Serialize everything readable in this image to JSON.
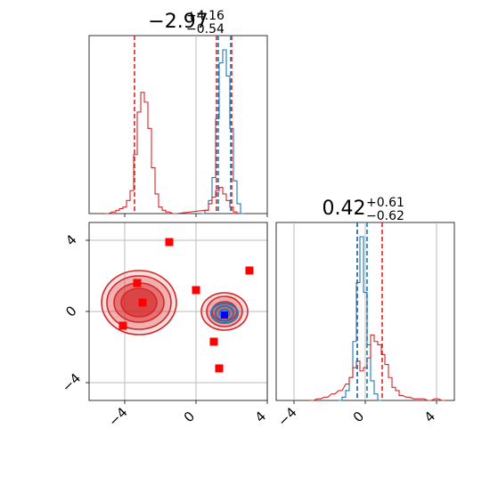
{
  "chart_data": [
    {
      "panel": "top-left histogram (x parameter)",
      "type": "histogram",
      "title_main": "−2.97",
      "title_sup": "+4.16",
      "title_sub": "−0.54",
      "xlim": [
        -6,
        4
      ],
      "series": [
        {
          "color": "#1f77b4",
          "x": [
            0.4,
            0.6,
            0.8,
            1.0,
            1.2,
            1.4,
            1.6,
            1.8,
            2.0,
            2.2,
            2.4,
            2.6
          ],
          "values": [
            0,
            2,
            8,
            22,
            58,
            92,
            100,
            84,
            52,
            20,
            6,
            0
          ]
        },
        {
          "color": "#d62728",
          "x": [
            -5.0,
            -4.6,
            -4.4,
            -4.2,
            -4.0,
            -3.8,
            -3.6,
            -3.4,
            -3.2,
            -3.0,
            -2.8,
            -2.6,
            -2.4,
            -2.2,
            -2.0,
            -1.8,
            -1.6,
            -1.2,
            0.6,
            0.8,
            1.0,
            1.2,
            1.4,
            1.6,
            1.8,
            2.0,
            2.2
          ],
          "values": [
            0,
            1,
            2,
            3,
            4,
            8,
            14,
            36,
            62,
            74,
            68,
            52,
            28,
            12,
            4,
            2,
            1,
            0,
            2,
            6,
            10,
            14,
            16,
            12,
            8,
            4,
            1
          ]
        }
      ],
      "quantile_lines": [
        {
          "color": "#d62728",
          "x": [
            -3.45,
            1.15,
            2.0
          ]
        },
        {
          "color": "#1f77b4",
          "x": [
            1.25,
            1.95
          ]
        }
      ],
      "axvline_gray": 0.0
    },
    {
      "panel": "bottom-right histogram (y parameter)",
      "type": "histogram",
      "title_main": "0.42",
      "title_sup": "+0.61",
      "title_sub": "−0.62",
      "xlim": [
        -5,
        5
      ],
      "xticks": [
        -4,
        0,
        4
      ],
      "xtick_labels": [
        "−4",
        "0",
        "4"
      ],
      "series": [
        {
          "color": "#1f77b4",
          "x": [
            -1.4,
            -1.2,
            -1.0,
            -0.8,
            -0.6,
            -0.4,
            -0.2,
            0.0,
            0.2,
            0.4,
            0.6,
            0.8
          ],
          "values": [
            0,
            2,
            6,
            14,
            36,
            72,
            100,
            66,
            34,
            12,
            4,
            0
          ]
        },
        {
          "color": "#d62728",
          "x": [
            -3.0,
            -2.6,
            -2.2,
            -1.8,
            -1.4,
            -1.0,
            -0.8,
            -0.6,
            -0.4,
            -0.2,
            0.0,
            0.2,
            0.4,
            0.6,
            0.8,
            1.0,
            1.2,
            1.4,
            1.6,
            1.8,
            2.0,
            2.4,
            2.8,
            3.2,
            3.6,
            4.0,
            4.4
          ],
          "values": [
            0,
            1,
            2,
            4,
            6,
            10,
            14,
            20,
            24,
            18,
            20,
            26,
            40,
            36,
            34,
            28,
            22,
            14,
            8,
            6,
            3,
            2,
            1,
            1,
            0,
            1,
            0
          ]
        }
      ],
      "quantile_lines": [
        {
          "color": "#d62728",
          "x": [
            -0.45,
            0.95
          ]
        },
        {
          "color": "#1f77b4",
          "x": [
            -0.45,
            0.1
          ]
        }
      ],
      "axvline_gray": 0.0
    },
    {
      "panel": "bottom-left 2D corner (y vs x)",
      "type": "scatter",
      "xlim": [
        -6,
        4
      ],
      "ylim": [
        -5,
        5
      ],
      "xticks": [
        -4,
        0,
        4
      ],
      "xtick_labels": [
        "−4",
        "0",
        "4"
      ],
      "yticks": [
        -4,
        0,
        4
      ],
      "ytick_labels": [
        "−4",
        "0",
        "4"
      ],
      "grid": true,
      "red_markers": {
        "color": "#ff0000",
        "x": [
          -1.5,
          -3.3,
          0.0,
          3.0,
          -3.0,
          -4.1,
          1.0,
          1.3
        ],
        "y": [
          3.9,
          1.6,
          1.2,
          2.3,
          0.5,
          -0.8,
          -1.7,
          -3.2
        ]
      },
      "blue_marker": {
        "color": "#0000ff",
        "x": 1.6,
        "y": -0.2
      },
      "red_contours": {
        "color": "#d62728",
        "fill": "#d62728",
        "centers": [
          {
            "x": -3.2,
            "y": 0.5
          },
          {
            "x": 1.6,
            "y": 0.0
          }
        ],
        "levels": [
          {
            "rx": 2.1,
            "ry": 1.8,
            "opacity": 0.15
          },
          {
            "rx": 1.8,
            "ry": 1.5,
            "opacity": 0.25
          },
          {
            "rx": 1.4,
            "ry": 1.1,
            "opacity": 0.45
          },
          {
            "rx": 1.0,
            "ry": 0.8,
            "opacity": 0.6
          }
        ],
        "levels_small": [
          {
            "rx": 1.3,
            "ry": 1.05,
            "opacity": 0.15
          },
          {
            "rx": 1.0,
            "ry": 0.85,
            "opacity": 0.28
          },
          {
            "rx": 0.7,
            "ry": 0.55,
            "opacity": 0.5
          }
        ]
      },
      "blue_contours": {
        "color": "#1f77b4",
        "center": {
          "x": 1.6,
          "y": -0.1
        },
        "levels": [
          {
            "rx": 0.75,
            "ry": 0.55
          },
          {
            "rx": 0.5,
            "ry": 0.4
          },
          {
            "rx": 0.28,
            "ry": 0.22
          }
        ]
      }
    }
  ]
}
